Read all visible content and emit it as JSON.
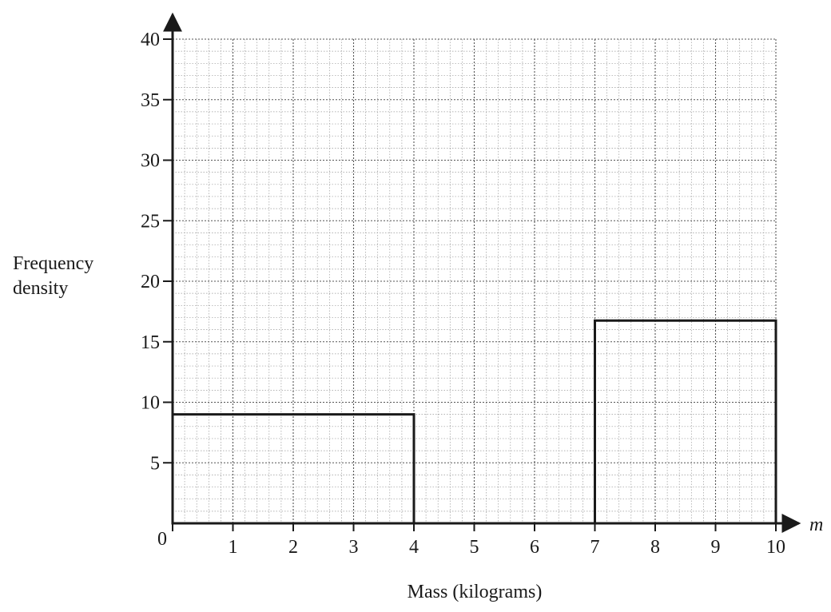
{
  "chart_data": {
    "type": "histogram",
    "title": "",
    "xlabel": "Mass (kilograms)",
    "x_variable": "m",
    "ylabel_lines": [
      "Frequency",
      "density"
    ],
    "origin_label": "0",
    "xlim": [
      0,
      10
    ],
    "ylim": [
      0,
      40
    ],
    "x_ticks": [
      1,
      2,
      3,
      4,
      5,
      6,
      7,
      8,
      9,
      10
    ],
    "y_ticks": [
      5,
      10,
      15,
      20,
      25,
      30,
      35,
      40
    ],
    "x_tick_labels": [
      "1",
      "2",
      "3",
      "4",
      "5",
      "6",
      "7",
      "8",
      "9",
      "10"
    ],
    "y_tick_labels": [
      "5",
      "10",
      "15",
      "20",
      "25",
      "30",
      "35",
      "40"
    ],
    "grid": true,
    "bars": [
      {
        "x_start": 0,
        "x_end": 4,
        "frequency_density": 9
      },
      {
        "x_start": 7,
        "x_end": 10,
        "frequency_density": 16.75
      }
    ]
  }
}
